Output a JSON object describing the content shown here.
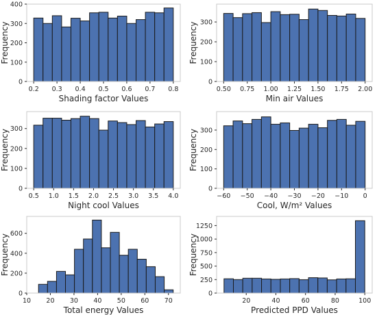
{
  "colors": {
    "bar_fill": "#4c72b0",
    "bar_edge": "#1a1a1a",
    "frame": "#c8c8c8",
    "text": "#262626"
  },
  "chart_data": [
    {
      "type": "bar",
      "xlabel": "Shading factor Values",
      "ylabel": "Frequency",
      "bin_range": [
        0.2,
        0.8
      ],
      "values": [
        328,
        300,
        340,
        282,
        327,
        313,
        355,
        358,
        328,
        338,
        300,
        320,
        358,
        355,
        380
      ],
      "xlim": [
        0.17,
        0.83
      ],
      "ylim": [
        0,
        400
      ],
      "xticks": [
        0.2,
        0.3,
        0.4,
        0.5,
        0.6,
        0.7,
        0.8
      ],
      "xtick_labels": [
        "0.2",
        "0.3",
        "0.4",
        "0.5",
        "0.6",
        "0.7",
        "0.8"
      ],
      "yticks": [
        0,
        100,
        200,
        300,
        400
      ],
      "ytick_labels": [
        "0",
        "100",
        "200",
        "300",
        "400"
      ],
      "grid": false
    },
    {
      "type": "bar",
      "xlabel": "Min air  Values",
      "ylabel": "Frequency",
      "bin_range": [
        0.5,
        2.0
      ],
      "values": [
        343,
        322,
        342,
        347,
        297,
        352,
        337,
        339,
        312,
        365,
        358,
        333,
        330,
        340,
        318
      ],
      "xlim": [
        0.425,
        2.075
      ],
      "ylim": [
        0,
        390
      ],
      "xticks": [
        0.5,
        0.75,
        1.0,
        1.25,
        1.5,
        1.75,
        2.0
      ],
      "xtick_labels": [
        "0.50",
        "0.75",
        "1.00",
        "1.25",
        "1.50",
        "1.75",
        "2.00"
      ],
      "yticks": [
        0,
        100,
        200,
        300
      ],
      "ytick_labels": [
        "0",
        "100",
        "200",
        "300"
      ],
      "grid": false
    },
    {
      "type": "bar",
      "xlabel": "Night cool Values",
      "ylabel": "Frequency",
      "bin_range": [
        0.5,
        4.0
      ],
      "values": [
        317,
        352,
        352,
        342,
        350,
        362,
        350,
        292,
        338,
        330,
        320,
        340,
        308,
        323,
        335
      ],
      "xlim": [
        0.325,
        4.175
      ],
      "ylim": [
        0,
        385
      ],
      "xticks": [
        0.5,
        1.0,
        1.5,
        2.0,
        2.5,
        3.0,
        3.5,
        4.0
      ],
      "xtick_labels": [
        "0.5",
        "1.0",
        "1.5",
        "2.0",
        "2.5",
        "3.0",
        "3.5",
        "4.0"
      ],
      "yticks": [
        0,
        100,
        200,
        300
      ],
      "ytick_labels": [
        "0",
        "100",
        "200",
        "300"
      ],
      "grid": false
    },
    {
      "type": "bar",
      "xlabel": "Cool, W/m² Values",
      "ylabel": "Frequency",
      "bin_range": [
        -60,
        0
      ],
      "values": [
        322,
        347,
        333,
        355,
        368,
        330,
        337,
        298,
        310,
        330,
        312,
        350,
        355,
        325,
        345
      ],
      "xlim": [
        -63,
        3
      ],
      "ylim": [
        0,
        395
      ],
      "xticks": [
        -60,
        -50,
        -40,
        -30,
        -20,
        -10,
        0
      ],
      "xtick_labels": [
        "−60",
        "−50",
        "−40",
        "−30",
        "−20",
        "−10",
        "0"
      ],
      "yticks": [
        0,
        100,
        200,
        300
      ],
      "ytick_labels": [
        "0",
        "100",
        "200",
        "300"
      ],
      "grid": false
    },
    {
      "type": "bar",
      "xlabel": "Total energy Values",
      "ylabel": "Frequency",
      "bin_range": [
        15,
        72
      ],
      "values": [
        88,
        118,
        218,
        183,
        440,
        543,
        733,
        455,
        610,
        380,
        440,
        340,
        265,
        165,
        33
      ],
      "xlim": [
        10,
        75
      ],
      "ylim": [
        0,
        770
      ],
      "xticks": [
        10,
        20,
        30,
        40,
        50,
        60,
        70
      ],
      "xtick_labels": [
        "10",
        "20",
        "30",
        "40",
        "50",
        "60",
        "70"
      ],
      "yticks": [
        0,
        200,
        400,
        600
      ],
      "ytick_labels": [
        "0",
        "200",
        "400",
        "600"
      ],
      "grid": false
    },
    {
      "type": "bar",
      "xlabel": "Predicted PPD Values",
      "ylabel": "Frequency",
      "bin_range": [
        5,
        100
      ],
      "values": [
        265,
        250,
        275,
        275,
        262,
        255,
        262,
        268,
        248,
        285,
        280,
        245,
        262,
        265,
        1340
      ],
      "xlim": [
        0,
        105
      ],
      "ylim": [
        0,
        1420
      ],
      "xticks": [
        20,
        40,
        60,
        80,
        100
      ],
      "xtick_labels": [
        "20",
        "40",
        "60",
        "80",
        "100"
      ],
      "yticks": [
        0,
        250,
        500,
        750,
        1000,
        1250
      ],
      "ytick_labels": [
        "0",
        "250",
        "500",
        "750",
        "1000",
        "1250"
      ],
      "grid": false
    }
  ]
}
